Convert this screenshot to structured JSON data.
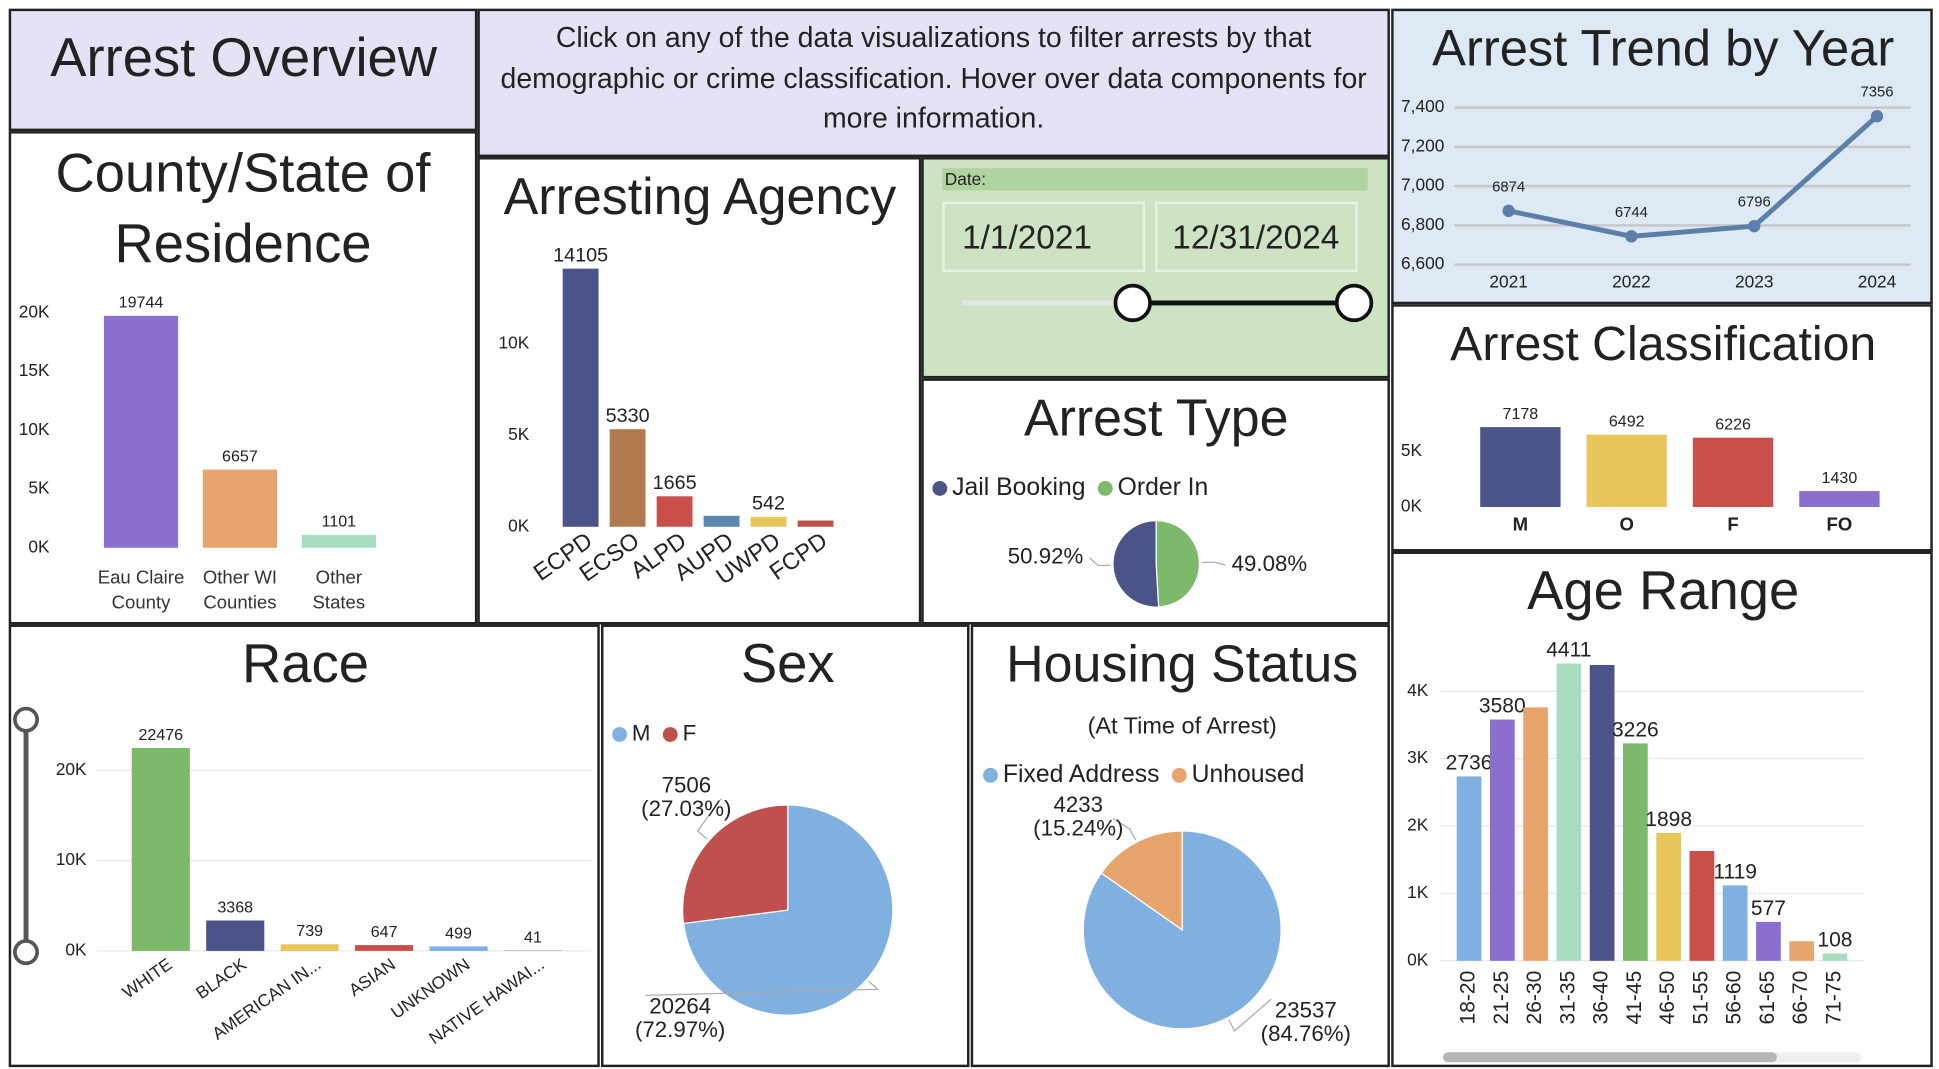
{
  "header": {
    "title": "Arrest Overview",
    "instructions": "Click on any of the data visualizations to filter arrests by that demographic or crime classification. Hover over data components for more information."
  },
  "date_filter": {
    "label": "Date:",
    "start": "1/1/2021",
    "end": "12/31/2024"
  },
  "chart_data": [
    {
      "type": "bar",
      "title": "County/State of Residence",
      "categories": [
        "Eau Claire County",
        "Other WI Counties",
        "Other States"
      ],
      "values": [
        19744,
        6657,
        1101
      ],
      "colors": [
        "#8b6fcf",
        "#e8a46d",
        "#a8dcc0"
      ],
      "ylim": [
        0,
        21000
      ],
      "yticks": [
        {
          "value": 0,
          "label": "0K"
        },
        {
          "value": 5000,
          "label": "5K"
        },
        {
          "value": 10000,
          "label": "10K"
        },
        {
          "value": 15000,
          "label": "15K"
        },
        {
          "value": 20000,
          "label": "20K"
        }
      ]
    },
    {
      "type": "bar",
      "title": "Arresting Agency",
      "categories": [
        "ECPD",
        "ECSO",
        "ALPD",
        "AUPD",
        "UWPD",
        "FCPD"
      ],
      "values": [
        14105,
        5330,
        1665,
        600,
        542,
        340
      ],
      "value_labels": [
        "14105",
        "5330",
        "1665",
        null,
        "542",
        null
      ],
      "colors": [
        "#4a5488",
        "#b07a4f",
        "#c9504a",
        "#5b86b0",
        "#e8c75a",
        "#c0504d"
      ],
      "ylim": [
        0,
        14500
      ],
      "yticks": [
        {
          "value": 0,
          "label": "0K"
        },
        {
          "value": 5000,
          "label": "5K"
        },
        {
          "value": 10000,
          "label": "10K"
        }
      ]
    },
    {
      "type": "line",
      "title": "Arrest Trend by Year",
      "categories": [
        "2021",
        "2022",
        "2023",
        "2024"
      ],
      "values": [
        6874,
        6744,
        6796,
        7356
      ],
      "color": "#5b7fa8",
      "grid": true,
      "ylim": [
        6600,
        7400
      ],
      "yticks": [
        {
          "value": 6600,
          "label": "6,600"
        },
        {
          "value": 6800,
          "label": "6,800"
        },
        {
          "value": 7000,
          "label": "7,000"
        },
        {
          "value": 7200,
          "label": "7,200"
        },
        {
          "value": 7400,
          "label": "7,400"
        }
      ]
    },
    {
      "type": "pie",
      "title": "Arrest Type",
      "categories": [
        "Jail Booking",
        "Order In"
      ],
      "values": [
        50.92,
        49.08
      ],
      "value_labels": [
        "50.92%",
        "49.08%"
      ],
      "colors": [
        "#4a5488",
        "#7cb96a"
      ]
    },
    {
      "type": "bar",
      "title": "Arrest Classification",
      "categories": [
        "M",
        "O",
        "F",
        "FO"
      ],
      "values": [
        7178,
        6492,
        6226,
        1430
      ],
      "colors": [
        "#4a5488",
        "#e8c75a",
        "#c9504a",
        "#8b6fcf"
      ],
      "ylim": [
        0,
        7500
      ],
      "yticks": [
        {
          "value": 0,
          "label": "0K"
        },
        {
          "value": 5000,
          "label": "5K"
        }
      ]
    },
    {
      "type": "bar",
      "title": "Age Range",
      "categories": [
        "18-20",
        "21-25",
        "26-30",
        "31-35",
        "36-40",
        "41-45",
        "46-50",
        "51-55",
        "56-60",
        "61-65",
        "66-70",
        "71-75"
      ],
      "values": [
        2736,
        3580,
        3760,
        4411,
        4390,
        3226,
        1898,
        1630,
        1119,
        577,
        290,
        108
      ],
      "value_labels": [
        "2736",
        "3580",
        null,
        "4411",
        null,
        "3226",
        "1898",
        null,
        "1119",
        "577",
        null,
        "108"
      ],
      "colors": [
        "#7fb0e0",
        "#8b6fcf",
        "#e8a46d",
        "#a8dcc0",
        "#4a5488",
        "#7cb96a",
        "#e8c75a",
        "#c9504a",
        "#7fb0e0",
        "#8b6fcf",
        "#e8a46d",
        "#a8dcc0"
      ],
      "grid": true,
      "ylim": [
        0,
        4500
      ],
      "yticks": [
        {
          "value": 0,
          "label": "0K"
        },
        {
          "value": 1000,
          "label": "1K"
        },
        {
          "value": 2000,
          "label": "2K"
        },
        {
          "value": 3000,
          "label": "3K"
        },
        {
          "value": 4000,
          "label": "4K"
        }
      ]
    },
    {
      "type": "bar",
      "title": "Race",
      "categories": [
        "WHITE",
        "BLACK",
        "AMERICAN IN...",
        "ASIAN",
        "UNKNOWN",
        "NATIVE HAWAI..."
      ],
      "values": [
        22476,
        3368,
        739,
        647,
        499,
        41
      ],
      "colors": [
        "#7cb96a",
        "#4a5488",
        "#e8c75a",
        "#c9504a",
        "#7fb0e0",
        "#8b6fcf"
      ],
      "grid": true,
      "ylim": [
        0,
        24000
      ],
      "yticks": [
        {
          "value": 0,
          "label": "0K"
        },
        {
          "value": 10000,
          "label": "10K"
        },
        {
          "value": 20000,
          "label": "20K"
        }
      ]
    },
    {
      "type": "pie",
      "title": "Sex",
      "categories": [
        "M",
        "F"
      ],
      "values": [
        20264,
        7506
      ],
      "percent_labels": [
        "(72.97%)",
        "(27.03%)"
      ],
      "colors": [
        "#7fb0e0",
        "#c0504d"
      ]
    },
    {
      "type": "pie",
      "title": "Housing Status",
      "subtitle": "(At Time of Arrest)",
      "categories": [
        "Fixed Address",
        "Unhoused"
      ],
      "values": [
        23537,
        4233
      ],
      "percent_labels": [
        "(84.76%)",
        "(15.24%)"
      ],
      "colors": [
        "#7fb0e0",
        "#e8a46d"
      ]
    }
  ]
}
